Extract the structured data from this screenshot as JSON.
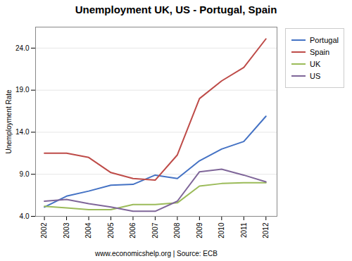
{
  "chart_data": {
    "type": "line",
    "title": "Unemployment UK, US - Portugal, Spain",
    "xlabel": "www.economicshelp.org | Source: ECB",
    "ylabel": "Unemployment Rate",
    "x": [
      2002,
      2003,
      2004,
      2005,
      2006,
      2007,
      2008,
      2009,
      2010,
      2011,
      2012
    ],
    "series": [
      {
        "name": "Portugal",
        "color": "#4472C4",
        "values": [
          5.1,
          6.4,
          7.0,
          7.7,
          7.8,
          8.9,
          8.5,
          10.6,
          12.0,
          12.9,
          15.9
        ]
      },
      {
        "name": "Spain",
        "color": "#BE4B48",
        "values": [
          11.5,
          11.5,
          11.0,
          9.2,
          8.5,
          8.3,
          11.3,
          18.0,
          20.1,
          21.7,
          25.1
        ]
      },
      {
        "name": "UK",
        "color": "#9BBB59",
        "values": [
          5.2,
          5.0,
          4.8,
          4.8,
          5.4,
          5.4,
          5.6,
          7.6,
          7.9,
          8.0,
          8.0
        ]
      },
      {
        "name": "US",
        "color": "#7F6699",
        "values": [
          5.8,
          6.0,
          5.5,
          5.1,
          4.6,
          4.6,
          5.8,
          9.3,
          9.6,
          8.9,
          8.1
        ]
      }
    ],
    "xlim": [
      2001.6,
      2012.5
    ],
    "xticks": [
      2002,
      2003,
      2004,
      2005,
      2006,
      2007,
      2008,
      2009,
      2010,
      2011,
      2012
    ],
    "ylim": [
      4.0,
      26.5
    ],
    "yticks": [
      {
        "value": 4,
        "label": "4.0"
      },
      {
        "value": 9,
        "label": "9.0"
      },
      {
        "value": 14,
        "label": "14.0"
      },
      {
        "value": 19,
        "label": "19.0"
      },
      {
        "value": 24,
        "label": "24.0"
      }
    ],
    "grid": "y",
    "legend": "right"
  }
}
